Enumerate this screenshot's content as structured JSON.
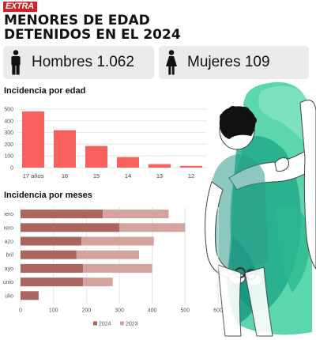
{
  "brand": {
    "logo_text": "EXTRA",
    "logo_sub": "",
    "color": "#d42027"
  },
  "headline": [
    "MENORES DE EDAD",
    "DETENIDOS EN EL 2024"
  ],
  "stats": {
    "men_label": "Hombres 1.062",
    "women_label": "Mujeres 109",
    "men_icon": "man-icon",
    "women_icon": "woman-icon"
  },
  "sections": {
    "age_title": "Incidencia por edad",
    "month_title": "Incidencia por meses"
  },
  "chart_data": [
    {
      "type": "bar",
      "title": "Incidencia por edad",
      "categories": [
        "17 años",
        "16",
        "15",
        "14",
        "13",
        "12"
      ],
      "values": [
        480,
        320,
        185,
        90,
        30,
        15
      ],
      "ylim": [
        0,
        500
      ],
      "yticks": [
        "500",
        "400",
        "300",
        "200",
        "100",
        "0"
      ],
      "color": "#f8625e",
      "grid": true
    },
    {
      "type": "bar",
      "orientation": "horizontal",
      "stacked": true,
      "title": "Incidencia por meses",
      "categories": [
        "iero",
        "rero",
        "azo",
        "bril",
        "ayo",
        "unio",
        "ulio"
      ],
      "series": [
        {
          "name": "2024",
          "values": [
            250,
            300,
            185,
            170,
            190,
            190,
            55
          ],
          "color": "#a9655e"
        },
        {
          "name": "2023",
          "values": [
            200,
            200,
            220,
            190,
            210,
            90,
            0
          ],
          "color": "#d4a39f"
        }
      ],
      "xlim": [
        0,
        600
      ],
      "xticks": [
        "0",
        "100",
        "200",
        "300",
        "400",
        "500",
        "600"
      ],
      "grid": true,
      "legend_position": "bottom"
    }
  ]
}
